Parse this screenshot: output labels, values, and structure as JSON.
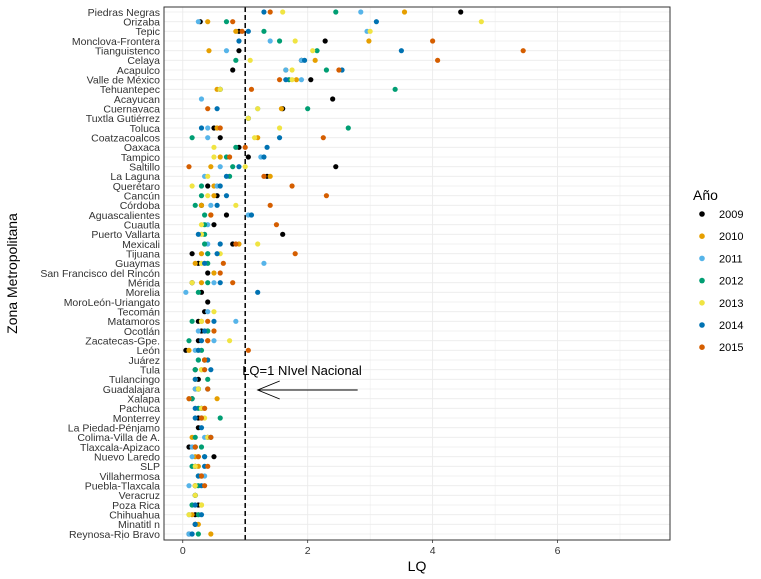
{
  "chart_data": {
    "type": "scatter",
    "title": "",
    "xlabel": "LQ",
    "ylabel": "Zona Metropolitana",
    "xlim": [
      -0.3,
      7.8
    ],
    "xticks": [
      0,
      2,
      4,
      6
    ],
    "grid": true,
    "legend": {
      "title": "Año",
      "placement": "right",
      "entries": [
        {
          "name": "2009",
          "color": "#000000"
        },
        {
          "name": "2010",
          "color": "#E69F00"
        },
        {
          "name": "2011",
          "color": "#56B4E9"
        },
        {
          "name": "2012",
          "color": "#009E73"
        },
        {
          "name": "2013",
          "color": "#F0E442"
        },
        {
          "name": "2014",
          "color": "#0072B2"
        },
        {
          "name": "2015",
          "color": "#D55E00"
        }
      ]
    },
    "reference_line": {
      "x": 1,
      "style": "dashed"
    },
    "annotation": {
      "text": "LQ=1 NIvel Nacional",
      "x": 1.0,
      "arrow_from": 2.8,
      "arrow_to": 1.2
    },
    "categories": [
      "Piedras Negras",
      "Orizaba",
      "Tepic",
      "Monclova-Frontera",
      "Tianguistenco",
      "Celaya",
      "Acapulco",
      "Valle de México",
      "Tehuantepec",
      "Acayucan",
      "Cuernavaca",
      "Tuxtla Gutiérrez",
      "Toluca",
      "Coatzacoalcos",
      "Oaxaca",
      "Tampico",
      "Saltillo",
      "La Laguna",
      "Querétaro",
      "Cancún",
      "Córdoba",
      "Aguascalientes",
      "Cuautla",
      "Puerto Vallarta",
      "Mexicali",
      "Tijuana",
      "Guaymas",
      "San Francisco del Rincón",
      "Mérida",
      "Morelia",
      "MoroLeón-Uriangato",
      "Tecomán",
      "Matamoros",
      "Ocotlán",
      "Zacatecas-Gpe.",
      "León",
      "Juárez",
      "Tula",
      "Tulancingo",
      "Guadalajara",
      "Xalapa",
      "Pachuca",
      "Monterrey",
      "La Piedad-Pénjamo",
      "Colima-Villa de A.",
      "Tlaxcala-Apizaco",
      "Nuevo Laredo",
      "SLP",
      "Villahermosa",
      "Puebla-Tlaxcala",
      "Veracruz",
      "Poza Rica",
      "Chihuahua",
      "Minatitl n",
      "Reynosa-Rịo Bravo"
    ],
    "series": [
      {
        "name": "2009",
        "values": [
          4.45,
          0.28,
          0.9,
          2.28,
          0.9,
          1.9,
          0.8,
          2.05,
          0.6,
          2.4,
          1.6,
          1.05,
          0.5,
          0.6,
          0.9,
          1.05,
          2.45,
          1.35,
          0.4,
          0.55,
          0.3,
          0.7,
          0.5,
          1.6,
          0.8,
          0.15,
          0.25,
          0.4,
          0.15,
          0.3,
          0.4,
          0.35,
          0.25,
          0.3,
          0.25,
          0.05,
          0.35,
          0.2,
          0.25,
          0.25,
          0.15,
          0.3,
          0.25,
          0.25,
          0.4,
          0.1,
          0.5,
          0.2,
          0.3,
          0.2,
          0.2,
          0.25,
          0.2,
          0.2,
          0.1
        ]
      },
      {
        "name": "2010",
        "values": [
          3.55,
          0.4,
          0.85,
          2.98,
          0.42,
          2.12,
          1.65,
          1.82,
          0.55,
          null,
          1.58,
          null,
          0.55,
          1.2,
          null,
          0.6,
          0.45,
          1.4,
          0.5,
          0.5,
          0.3,
          0.45,
          null,
          null,
          0.9,
          0.3,
          0.2,
          0.5,
          0.3,
          null,
          null,
          null,
          0.3,
          0.4,
          0.4,
          0.1,
          0.35,
          0.3,
          null,
          0.2,
          0.55,
          0.35,
          0.3,
          null,
          0.15,
          0.2,
          0.2,
          0.25,
          null,
          0.2,
          null,
          0.3,
          0.15,
          0.25,
          0.45
        ]
      },
      {
        "name": "2011",
        "values": [
          2.85,
          0.25,
          2.95,
          1.4,
          0.7,
          1.9,
          1.65,
          1.9,
          0.6,
          0.3,
          1.2,
          1.05,
          0.4,
          0.4,
          null,
          1.25,
          0.6,
          0.35,
          0.55,
          null,
          0.45,
          1.05,
          0.4,
          0.3,
          0.4,
          0.4,
          1.3,
          null,
          0.5,
          0.05,
          null,
          0.4,
          0.85,
          0.25,
          0.5,
          0.2,
          0.25,
          0.35,
          null,
          0.2,
          0.1,
          null,
          0.3,
          null,
          0.35,
          0.15,
          0.15,
          0.15,
          0.35,
          0.1,
          null,
          0.15,
          0.1,
          null,
          0.1
        ]
      },
      {
        "name": "2012",
        "values": [
          2.45,
          0.7,
          1.3,
          1.55,
          2.15,
          0.85,
          2.3,
          1.7,
          3.4,
          null,
          2.0,
          null,
          2.65,
          0.15,
          0.85,
          0.7,
          0.8,
          0.75,
          0.3,
          0.3,
          0.2,
          0.35,
          0.35,
          0.35,
          0.35,
          0.4,
          0.4,
          null,
          0.4,
          0.25,
          null,
          null,
          0.15,
          0.4,
          0.1,
          0.3,
          0.25,
          0.2,
          0.4,
          0.25,
          0.15,
          0.25,
          0.6,
          null,
          0.2,
          0.3,
          0.35,
          0.15,
          0.25,
          0.25,
          0.2,
          0.15,
          0.25,
          null,
          0.25
        ]
      },
      {
        "name": "2013",
        "values": [
          1.6,
          4.78,
          3.0,
          1.8,
          2.08,
          1.08,
          1.75,
          1.75,
          0.6,
          null,
          1.2,
          1.05,
          1.55,
          1.15,
          0.5,
          0.5,
          1.0,
          0.4,
          0.15,
          0.4,
          0.85,
          null,
          0.3,
          0.3,
          1.2,
          0.6,
          0.3,
          null,
          0.15,
          null,
          null,
          0.5,
          0.3,
          0.5,
          0.75,
          0.25,
          0.4,
          0.3,
          0.2,
          0.25,
          0.1,
          0.3,
          0.35,
          null,
          0.4,
          null,
          0.25,
          0.2,
          null,
          0.2,
          0.2,
          0.3,
          0.1,
          null,
          null
        ]
      },
      {
        "name": "2014",
        "values": [
          1.3,
          3.1,
          1.05,
          0.9,
          3.5,
          1.95,
          2.55,
          1.65,
          null,
          null,
          0.55,
          null,
          0.3,
          1.55,
          1.35,
          1.3,
          0.9,
          0.7,
          0.6,
          0.7,
          0.55,
          1.1,
          null,
          0.25,
          0.6,
          0.55,
          0.35,
          null,
          0.6,
          1.2,
          null,
          null,
          0.5,
          0.35,
          0.3,
          0.25,
          0.4,
          0.45,
          0.2,
          0.4,
          null,
          0.2,
          0.2,
          0.3,
          0.45,
          0.2,
          0.35,
          0.35,
          0.25,
          0.3,
          null,
          0.2,
          0.3,
          0.2,
          0.15
        ]
      },
      {
        "name": "2015",
        "values": [
          1.4,
          0.8,
          0.95,
          4.0,
          5.45,
          4.08,
          2.5,
          1.55,
          1.1,
          null,
          0.4,
          null,
          0.6,
          2.25,
          1.0,
          0.75,
          0.1,
          1.3,
          1.75,
          2.3,
          1.4,
          0.45,
          1.5,
          null,
          0.85,
          1.8,
          0.65,
          0.6,
          0.8,
          null,
          null,
          null,
          0.4,
          0.5,
          0.4,
          1.05,
          0.35,
          0.35,
          null,
          0.4,
          0.1,
          0.35,
          0.3,
          null,
          0.45,
          0.2,
          0.25,
          0.4,
          0.3,
          0.35,
          null,
          null,
          null,
          null,
          null
        ]
      }
    ]
  }
}
